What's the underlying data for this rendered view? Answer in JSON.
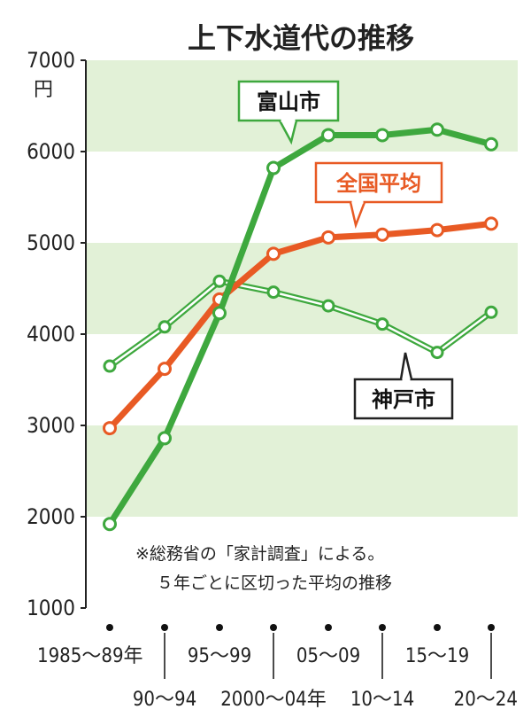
{
  "title": "上下水道代の推移",
  "unit": "円",
  "note_lines": [
    "※総務省の「家計調査」による。",
    "５年ごとに区切った平均の推移"
  ],
  "colors": {
    "band": "#e2f1d7",
    "toyama": "#3ea83e",
    "national": "#e85a24",
    "kobe": "#3ea83e",
    "axis": "#222222"
  },
  "chart_data": {
    "type": "line",
    "title": "上下水道代の推移",
    "ylabel": "円",
    "ylim": [
      1000,
      7000
    ],
    "yticks": [
      1000,
      2000,
      3000,
      4000,
      5000,
      6000,
      7000
    ],
    "categories": [
      "1985～89年",
      "90～94",
      "95～99",
      "2000～04年",
      "05～09",
      "10～14",
      "15～19",
      "20～24"
    ],
    "series": [
      {
        "name": "富山市",
        "values": [
          1920,
          2860,
          4230,
          5820,
          6180,
          6180,
          6240,
          6080
        ]
      },
      {
        "name": "全国平均",
        "values": [
          2970,
          3620,
          4380,
          4880,
          5060,
          5090,
          5140,
          5210
        ]
      },
      {
        "name": "神戸市",
        "values": [
          3650,
          4080,
          4580,
          4460,
          4310,
          4110,
          3800,
          4240
        ]
      }
    ],
    "grid": false,
    "legend": "inline labels"
  }
}
